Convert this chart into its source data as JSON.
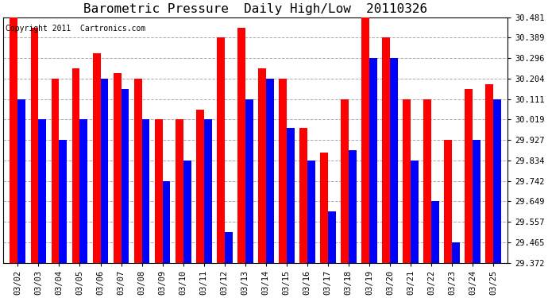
{
  "title": "Barometric Pressure  Daily High/Low  20110326",
  "copyright": "Copyright 2011  Cartronics.com",
  "categories": [
    "03/02",
    "03/03",
    "03/04",
    "03/05",
    "03/06",
    "03/07",
    "03/08",
    "03/09",
    "03/10",
    "03/11",
    "03/12",
    "03/13",
    "03/14",
    "03/15",
    "03/16",
    "03/17",
    "03/18",
    "03/19",
    "03/20",
    "03/21",
    "03/22",
    "03/23",
    "03/24",
    "03/25"
  ],
  "highs": [
    30.481,
    30.435,
    30.204,
    30.25,
    30.319,
    30.23,
    30.204,
    30.019,
    30.019,
    30.065,
    30.389,
    30.435,
    30.25,
    30.204,
    29.98,
    29.87,
    30.111,
    30.481,
    30.389,
    30.111,
    30.111,
    29.927,
    30.157,
    30.18
  ],
  "lows": [
    30.111,
    30.019,
    29.927,
    30.019,
    30.204,
    30.157,
    30.019,
    29.742,
    29.834,
    30.019,
    29.51,
    30.111,
    30.204,
    29.98,
    29.834,
    29.603,
    29.88,
    30.296,
    30.296,
    29.834,
    29.649,
    29.465,
    29.927,
    30.111
  ],
  "ylim_min": 29.372,
  "ylim_max": 30.481,
  "yticks": [
    29.372,
    29.465,
    29.557,
    29.649,
    29.742,
    29.834,
    29.927,
    30.019,
    30.111,
    30.204,
    30.296,
    30.389,
    30.481
  ],
  "bar_width": 0.38,
  "high_color": "#ff0000",
  "low_color": "#0000ff",
  "bg_color": "#ffffff",
  "grid_color": "#aaaaaa",
  "title_fontsize": 11.5,
  "tick_fontsize": 7.5,
  "copyright_fontsize": 7
}
